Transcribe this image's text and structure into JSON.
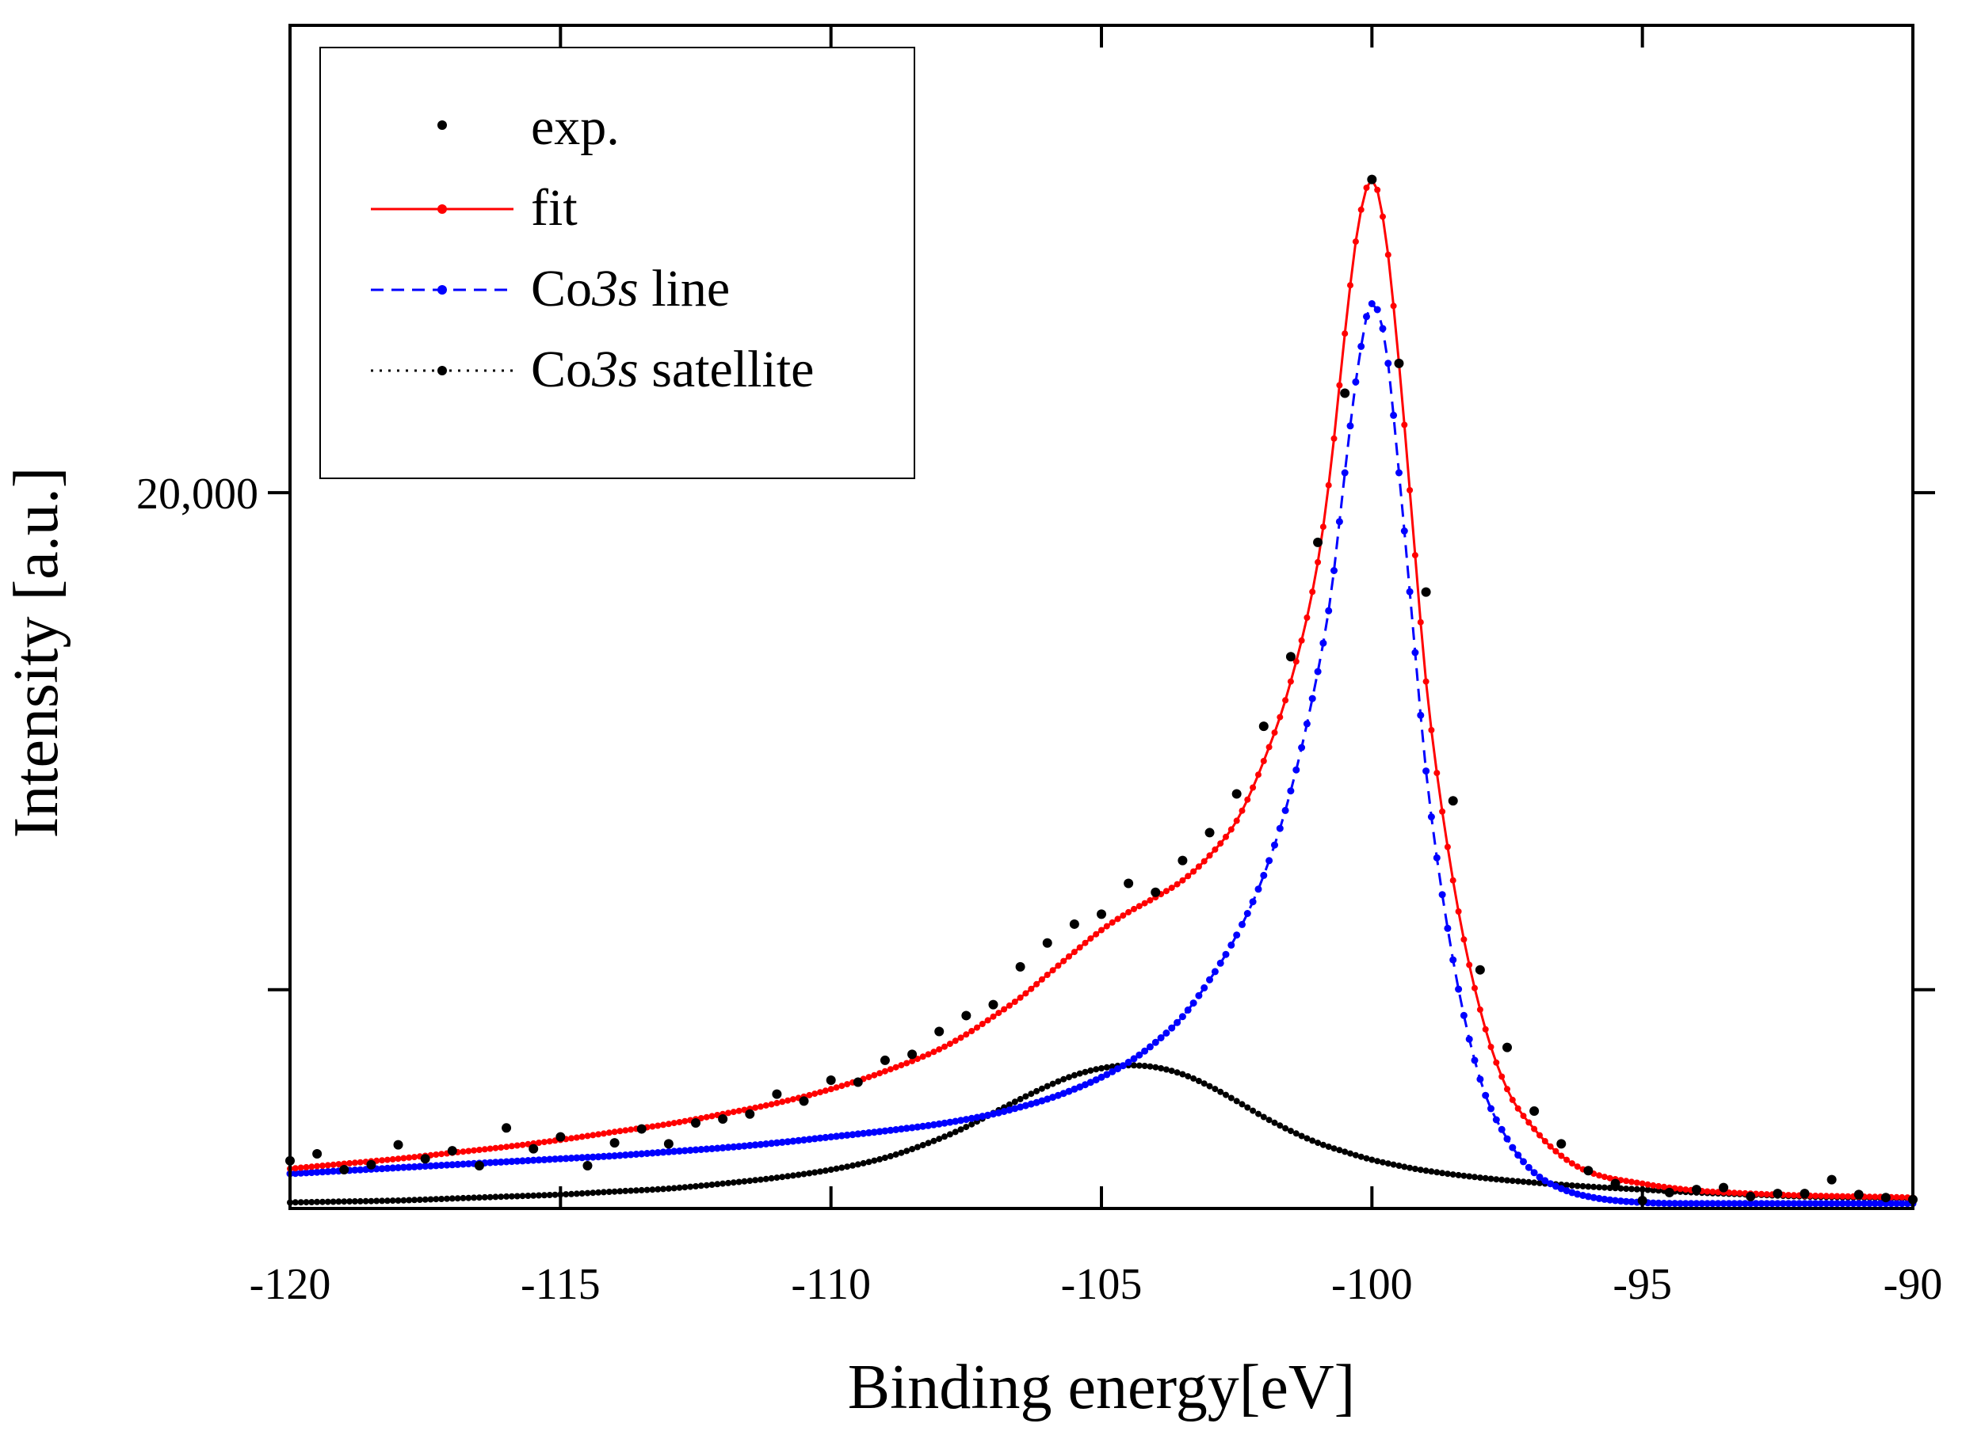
{
  "chart_data": {
    "type": "scatter",
    "title": "",
    "xlabel": "Binding energy[eV]",
    "ylabel": "Intensity [a.u.]",
    "xlim": [
      -120,
      -90
    ],
    "ylim": [
      12800,
      24700
    ],
    "x_ticks": [
      {
        "value": -120,
        "label": "-120"
      },
      {
        "value": -115,
        "label": "-115"
      },
      {
        "value": -110,
        "label": "-110"
      },
      {
        "value": -105,
        "label": "-105"
      },
      {
        "value": -100,
        "label": "-100"
      },
      {
        "value": -95,
        "label": "-95"
      },
      {
        "value": -90,
        "label": "-90"
      }
    ],
    "y_ticks": [
      {
        "value": 15000,
        "label": ""
      },
      {
        "value": 20000,
        "label": "20,000"
      }
    ],
    "grid": false,
    "legend_position": "top-left",
    "legend": [
      {
        "name": "exp.",
        "label_parts": [
          {
            "text": "exp.",
            "italic": false
          }
        ],
        "style": "points",
        "color": "#000000"
      },
      {
        "name": "fit",
        "label_parts": [
          {
            "text": "fit",
            "italic": false
          }
        ],
        "style": "solid-line-points",
        "color": "#ff0000"
      },
      {
        "name": "Co3s line",
        "label_parts": [
          {
            "text": "Co",
            "italic": false
          },
          {
            "text": "3s",
            "italic": true
          },
          {
            "text": " line",
            "italic": false
          }
        ],
        "style": "dashed-line-points",
        "color": "#0000ff"
      },
      {
        "name": "Co3s satellite",
        "label_parts": [
          {
            "text": "Co",
            "italic": false
          },
          {
            "text": "3s",
            "italic": true
          },
          {
            "text": " satellite",
            "italic": false
          }
        ],
        "style": "dotted-line-points",
        "color": "#000000"
      }
    ],
    "series": [
      {
        "name": "exp.",
        "color": "#000000",
        "x": [
          -120,
          -119.5,
          -119,
          -118.5,
          -118,
          -117.5,
          -117,
          -116.5,
          -116,
          -115.5,
          -115,
          -114.5,
          -114,
          -113.5,
          -113,
          -112.5,
          -112,
          -111.5,
          -111,
          -110.5,
          -110,
          -109.5,
          -109,
          -108.5,
          -108,
          -107.5,
          -107,
          -106.5,
          -106,
          -105.5,
          -105,
          -104.5,
          -104,
          -103.5,
          -103,
          -102.5,
          -102,
          -101.5,
          -101,
          -100.5,
          -100,
          -99.5,
          -99,
          -98.5,
          -98,
          -97.5,
          -97,
          -96.5,
          -96,
          -95.5,
          -95,
          -94.5,
          -94,
          -93.5,
          -93,
          -92.5,
          -92,
          -91.5,
          -91,
          -90.5,
          -90
        ],
        "y": [
          13280,
          13350,
          13190,
          13240,
          13440,
          13300,
          13380,
          13230,
          13610,
          13400,
          13520,
          13230,
          13460,
          13600,
          13450,
          13660,
          13700,
          13750,
          13950,
          13880,
          14090,
          14070,
          14290,
          14350,
          14580,
          14740,
          14850,
          15230,
          15470,
          15660,
          15760,
          16070,
          15980,
          16300,
          16580,
          16970,
          17650,
          18350,
          19500,
          21000,
          23150,
          21300,
          19000,
          16900,
          15200,
          14420,
          13780,
          13450,
          13180,
          13050,
          12880,
          12960,
          12990,
          13010,
          12920,
          12950,
          12950,
          13090,
          12940,
          12910,
          12890
        ]
      },
      {
        "name": "fit",
        "color": "#ff0000",
        "x": [
          -120,
          -119,
          -118,
          -117,
          -116,
          -115,
          -114,
          -113,
          -112,
          -111,
          -110,
          -109,
          -108,
          -107.5,
          -107,
          -106.5,
          -106,
          -105.5,
          -105,
          -104.5,
          -104,
          -103.5,
          -103,
          -102.5,
          -102,
          -101.5,
          -101,
          -100.75,
          -100.5,
          -100.25,
          -100,
          -99.75,
          -99.5,
          -99.25,
          -99,
          -98.5,
          -98,
          -97.5,
          -97,
          -96.5,
          -96,
          -95,
          -94,
          -93,
          -92,
          -91,
          -90
        ],
        "y": [
          13200,
          13250,
          13300,
          13360,
          13420,
          13490,
          13570,
          13650,
          13750,
          13860,
          14000,
          14180,
          14400,
          14550,
          14730,
          14920,
          15150,
          15380,
          15600,
          15780,
          15930,
          16100,
          16350,
          16700,
          17300,
          18100,
          19300,
          20300,
          21600,
          22700,
          23150,
          22600,
          21300,
          19700,
          18100,
          16100,
          14800,
          14000,
          13600,
          13330,
          13170,
          13050,
          12980,
          12950,
          12930,
          12920,
          12910
        ]
      },
      {
        "name": "Co3s line",
        "color": "#0000ff",
        "x": [
          -120,
          -119,
          -118,
          -117,
          -116,
          -115,
          -114,
          -113,
          -112,
          -111,
          -110,
          -109,
          -108,
          -107,
          -106.5,
          -106,
          -105.5,
          -105,
          -104.5,
          -104,
          -103.5,
          -103,
          -102.5,
          -102,
          -101.5,
          -101,
          -100.75,
          -100.5,
          -100.25,
          -100,
          -99.75,
          -99.5,
          -99.25,
          -99,
          -98.5,
          -98,
          -97.5,
          -97,
          -96.5,
          -96,
          -95,
          -94,
          -93,
          -92,
          -91,
          -90
        ],
        "y": [
          13150,
          13180,
          13210,
          13240,
          13270,
          13300,
          13330,
          13370,
          13410,
          13460,
          13520,
          13580,
          13650,
          13750,
          13820,
          13900,
          14000,
          14120,
          14270,
          14470,
          14730,
          15100,
          15550,
          16150,
          17000,
          18200,
          19000,
          20200,
          21300,
          21900,
          21500,
          20200,
          18700,
          17200,
          15300,
          14100,
          13500,
          13160,
          13000,
          12920,
          12860,
          12850,
          12850,
          12850,
          12850,
          12850
        ]
      },
      {
        "name": "Co3s satellite",
        "color": "#000000",
        "x": [
          -120,
          -119,
          -118,
          -117,
          -116,
          -115,
          -114,
          -113,
          -112,
          -111,
          -110,
          -109,
          -108,
          -107.5,
          -107,
          -106.5,
          -106,
          -105.5,
          -105,
          -104.5,
          -104,
          -103.5,
          -103,
          -102.5,
          -102,
          -101.5,
          -101,
          -100.5,
          -100,
          -99.5,
          -99,
          -98,
          -97,
          -96,
          -95,
          -94,
          -93,
          -92,
          -91,
          -90
        ],
        "y": [
          12860,
          12870,
          12880,
          12900,
          12920,
          12940,
          12970,
          13000,
          13050,
          13110,
          13190,
          13310,
          13500,
          13620,
          13760,
          13900,
          14030,
          14140,
          14210,
          14240,
          14220,
          14150,
          14030,
          13880,
          13720,
          13580,
          13460,
          13370,
          13290,
          13230,
          13180,
          13110,
          13060,
          13020,
          12990,
          12960,
          12940,
          12920,
          12910,
          12900
        ]
      }
    ]
  }
}
